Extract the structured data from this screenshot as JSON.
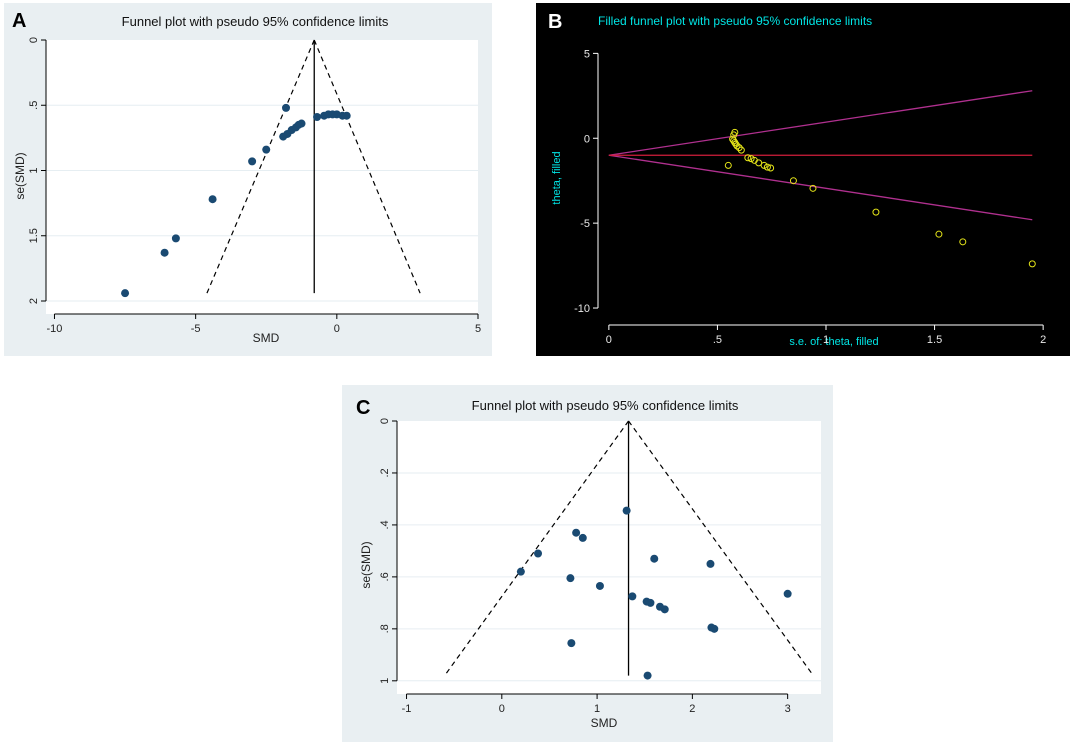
{
  "colors": {
    "panel_bg": "#e9eff2",
    "plot_bg": "#ffffff",
    "marker": "#1a4a72",
    "black_bg": "#000000",
    "cyan": "#00e5e5",
    "magenta": "#b0308f",
    "red": "#d21e3c",
    "yellow": "#e6e619"
  },
  "chart_data": [
    {
      "panel": "A",
      "type": "scatter",
      "title": "Funnel plot with pseudo 95% confidence limits",
      "xlabel": "SMD",
      "ylabel": "se(SMD)",
      "xlim": [
        -10.3,
        5
      ],
      "ylim": [
        0,
        2
      ],
      "y_reversed": true,
      "xticks": [
        -10,
        -5,
        0,
        5
      ],
      "xtick_labels": [
        "-10",
        "-5",
        "0",
        "5"
      ],
      "yticks": [
        0,
        0.5,
        1,
        1.5,
        2
      ],
      "ytick_labels": [
        "0",
        ".5",
        "1",
        "1.5",
        "2"
      ],
      "pooled_estimate": -0.8,
      "funnel_apex": [
        -0.8,
        0
      ],
      "funnel_base_se": 1.94,
      "funnel_base_left": -4.6,
      "funnel_base_right": 2.95,
      "points": [
        {
          "x": -7.5,
          "y": 1.94
        },
        {
          "x": -6.1,
          "y": 1.63
        },
        {
          "x": -5.7,
          "y": 1.52
        },
        {
          "x": -4.4,
          "y": 1.22
        },
        {
          "x": -3.0,
          "y": 0.93
        },
        {
          "x": -2.5,
          "y": 0.84
        },
        {
          "x": -1.8,
          "y": 0.52
        },
        {
          "x": -1.9,
          "y": 0.74
        },
        {
          "x": -1.75,
          "y": 0.72
        },
        {
          "x": -1.6,
          "y": 0.69
        },
        {
          "x": -1.45,
          "y": 0.67
        },
        {
          "x": -1.35,
          "y": 0.65
        },
        {
          "x": -1.25,
          "y": 0.64
        },
        {
          "x": -0.7,
          "y": 0.59
        },
        {
          "x": -0.45,
          "y": 0.58
        },
        {
          "x": -0.3,
          "y": 0.57
        },
        {
          "x": -0.15,
          "y": 0.57
        },
        {
          "x": 0.0,
          "y": 0.57
        },
        {
          "x": 0.2,
          "y": 0.58
        },
        {
          "x": 0.35,
          "y": 0.58
        }
      ]
    },
    {
      "panel": "B",
      "type": "scatter",
      "title": "Filled funnel plot with pseudo 95% confidence limits",
      "xlabel": "s.e. of: theta, filled",
      "ylabel": "theta, filled",
      "xlim": [
        -0.05,
        2.05
      ],
      "ylim": [
        -11,
        6.2
      ],
      "xticks": [
        0,
        0.5,
        1,
        1.5,
        2
      ],
      "xtick_labels": [
        "0",
        ".5",
        "1",
        "1.5",
        "2"
      ],
      "yticks": [
        -10,
        -5,
        0,
        5
      ],
      "ytick_labels": [
        "-10",
        "-5",
        "0",
        "5"
      ],
      "pooled_estimate": -1.0,
      "upper_limit_end": [
        1.95,
        2.8
      ],
      "lower_limit_end": [
        1.95,
        -4.8
      ],
      "points": [
        {
          "x": 0.58,
          "y": 0.35
        },
        {
          "x": 0.575,
          "y": 0.2
        },
        {
          "x": 0.57,
          "y": -0.05
        },
        {
          "x": 0.575,
          "y": -0.15
        },
        {
          "x": 0.58,
          "y": -0.25
        },
        {
          "x": 0.585,
          "y": -0.35
        },
        {
          "x": 0.59,
          "y": -0.45
        },
        {
          "x": 0.6,
          "y": -0.55
        },
        {
          "x": 0.61,
          "y": -0.7
        },
        {
          "x": 0.55,
          "y": -1.6
        },
        {
          "x": 0.64,
          "y": -1.15
        },
        {
          "x": 0.655,
          "y": -1.2
        },
        {
          "x": 0.67,
          "y": -1.3
        },
        {
          "x": 0.69,
          "y": -1.45
        },
        {
          "x": 0.715,
          "y": -1.6
        },
        {
          "x": 0.73,
          "y": -1.7
        },
        {
          "x": 0.745,
          "y": -1.75
        },
        {
          "x": 0.85,
          "y": -2.5
        },
        {
          "x": 0.94,
          "y": -2.95
        },
        {
          "x": 1.23,
          "y": -4.35
        },
        {
          "x": 1.52,
          "y": -5.65
        },
        {
          "x": 1.63,
          "y": -6.1
        },
        {
          "x": 1.95,
          "y": -7.4
        }
      ]
    },
    {
      "panel": "C",
      "type": "scatter",
      "title": "Funnel plot with pseudo 95% confidence limits",
      "xlabel": "SMD",
      "ylabel": "se(SMD)",
      "xlim": [
        -1.1,
        3.35
      ],
      "ylim": [
        0,
        1.02
      ],
      "y_reversed": true,
      "xticks": [
        -1,
        0,
        1,
        2,
        3
      ],
      "xtick_labels": [
        "-1",
        "0",
        "1",
        "2",
        "3"
      ],
      "yticks": [
        0,
        0.2,
        0.4,
        0.6,
        0.8,
        1
      ],
      "ytick_labels": [
        "0",
        ".2",
        ".4",
        ".6",
        ".8",
        "1"
      ],
      "pooled_estimate": 1.33,
      "funnel_apex": [
        1.33,
        0
      ],
      "funnel_base_se": 0.98,
      "funnel_base_left": -0.6,
      "funnel_base_right": 3.27,
      "points": [
        {
          "x": 0.2,
          "y": 0.58
        },
        {
          "x": 0.38,
          "y": 0.51
        },
        {
          "x": 0.72,
          "y": 0.605
        },
        {
          "x": 0.78,
          "y": 0.43
        },
        {
          "x": 0.85,
          "y": 0.45
        },
        {
          "x": 0.73,
          "y": 0.855
        },
        {
          "x": 1.03,
          "y": 0.635
        },
        {
          "x": 1.31,
          "y": 0.345
        },
        {
          "x": 1.37,
          "y": 0.675
        },
        {
          "x": 1.52,
          "y": 0.695
        },
        {
          "x": 1.56,
          "y": 0.7
        },
        {
          "x": 1.6,
          "y": 0.53
        },
        {
          "x": 1.66,
          "y": 0.715
        },
        {
          "x": 1.71,
          "y": 0.725
        },
        {
          "x": 1.53,
          "y": 0.98
        },
        {
          "x": 2.19,
          "y": 0.55
        },
        {
          "x": 2.2,
          "y": 0.795
        },
        {
          "x": 2.23,
          "y": 0.8
        },
        {
          "x": 3.0,
          "y": 0.665
        }
      ]
    }
  ]
}
